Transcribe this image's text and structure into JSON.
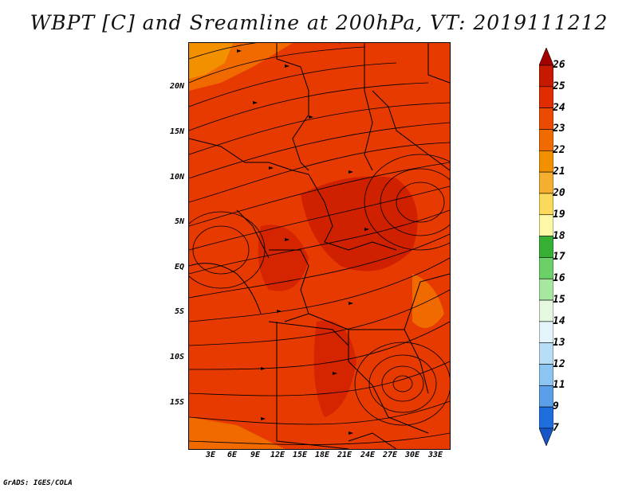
{
  "title": "WBPT [C] and Sreamline at 200hPa, VT: 2019111212",
  "footer": "GrADS: IGES/COLA",
  "y_axis_labels": [
    "20N",
    "15N",
    "10N",
    "5N",
    "EQ",
    "5S",
    "10S",
    "15S"
  ],
  "x_axis_labels": [
    "3E",
    "6E",
    "9E",
    "12E",
    "15E",
    "18E",
    "21E",
    "24E",
    "27E",
    "30E",
    "33E"
  ],
  "colorbar": {
    "labels": [
      "26",
      "25",
      "24",
      "23",
      "22",
      "21",
      "20",
      "19",
      "18",
      "17",
      "16",
      "15",
      "14",
      "13",
      "12",
      "11",
      "9",
      "7"
    ],
    "colors": [
      "#a50000",
      "#c51a00",
      "#e02c00",
      "#ec4a00",
      "#f06a00",
      "#f29000",
      "#f6ae2e",
      "#fbd95a",
      "#fdf7a8",
      "#35b033",
      "#6bd067",
      "#a6e8a0",
      "#e6f8e0",
      "#e4f4fb",
      "#b8def6",
      "#8cc4f2",
      "#5a9fe8",
      "#1f6ede",
      "#1557c6"
    ]
  }
}
